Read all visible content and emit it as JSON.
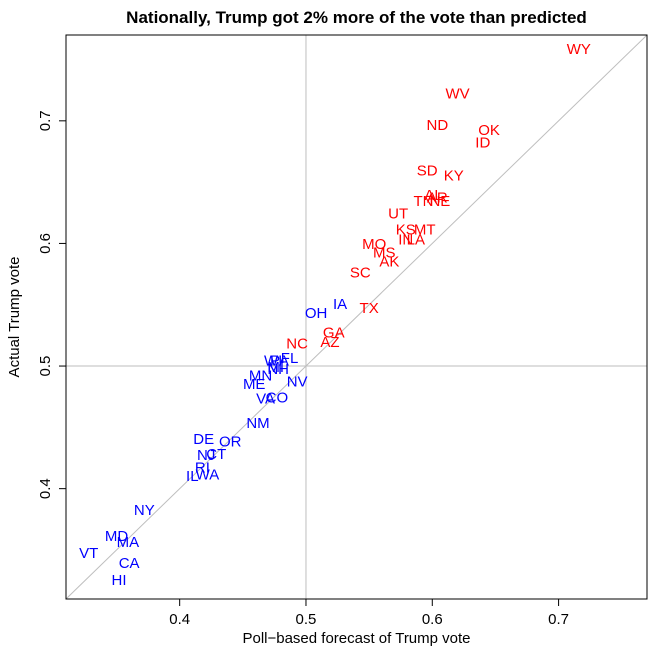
{
  "chart_data": {
    "type": "scatter",
    "title": "Nationally, Trump got 2% more of the vote than predicted",
    "xlabel": "Poll−based forecast of Trump  vote",
    "ylabel": "Actual Trump vote",
    "xlim": [
      0.31,
      0.77
    ],
    "ylim": [
      0.31,
      0.77
    ],
    "xticks": [
      {
        "value": 0.4,
        "label": "0.4"
      },
      {
        "value": 0.5,
        "label": "0.5"
      },
      {
        "value": 0.6,
        "label": "0.6"
      },
      {
        "value": 0.7,
        "label": "0.7"
      }
    ],
    "yticks": [
      {
        "value": 0.4,
        "label": "0.4"
      },
      {
        "value": 0.5,
        "label": "0.5"
      },
      {
        "value": 0.6,
        "label": "0.6"
      },
      {
        "value": 0.7,
        "label": "0.7"
      }
    ],
    "reference_lines": {
      "diagonal": "y = x",
      "vertical_x": 0.5,
      "horizontal_y": 0.5,
      "color": "#bebebe"
    },
    "colors": {
      "won": "#ff0000",
      "lost": "#0000ff"
    },
    "points": [
      {
        "label": "WY",
        "x": 0.716,
        "y": 0.758,
        "won": true
      },
      {
        "label": "WV",
        "x": 0.62,
        "y": 0.722,
        "won": true
      },
      {
        "label": "ND",
        "x": 0.604,
        "y": 0.696,
        "won": true
      },
      {
        "label": "OK",
        "x": 0.645,
        "y": 0.692,
        "won": true
      },
      {
        "label": "ID",
        "x": 0.64,
        "y": 0.682,
        "won": true
      },
      {
        "label": "SD",
        "x": 0.596,
        "y": 0.659,
        "won": true
      },
      {
        "label": "KY",
        "x": 0.617,
        "y": 0.655,
        "won": true
      },
      {
        "label": "AL",
        "x": 0.601,
        "y": 0.639,
        "won": true
      },
      {
        "label": "AR",
        "x": 0.604,
        "y": 0.637,
        "won": true
      },
      {
        "label": "TN",
        "x": 0.593,
        "y": 0.634,
        "won": true
      },
      {
        "label": "NE",
        "x": 0.606,
        "y": 0.634,
        "won": true
      },
      {
        "label": "UT",
        "x": 0.573,
        "y": 0.624,
        "won": true
      },
      {
        "label": "KS",
        "x": 0.579,
        "y": 0.611,
        "won": true
      },
      {
        "label": "MT",
        "x": 0.594,
        "y": 0.611,
        "won": true
      },
      {
        "label": "IN",
        "x": 0.579,
        "y": 0.603,
        "won": true
      },
      {
        "label": "LA",
        "x": 0.587,
        "y": 0.603,
        "won": true
      },
      {
        "label": "MO",
        "x": 0.554,
        "y": 0.599,
        "won": true
      },
      {
        "label": "MS",
        "x": 0.562,
        "y": 0.592,
        "won": true
      },
      {
        "label": "AK",
        "x": 0.566,
        "y": 0.585,
        "won": true
      },
      {
        "label": "SC",
        "x": 0.543,
        "y": 0.576,
        "won": true
      },
      {
        "label": "TX",
        "x": 0.55,
        "y": 0.547,
        "won": true
      },
      {
        "label": "IA",
        "x": 0.527,
        "y": 0.55,
        "won": false
      },
      {
        "label": "OH",
        "x": 0.508,
        "y": 0.543,
        "won": false
      },
      {
        "label": "GA",
        "x": 0.522,
        "y": 0.527,
        "won": true
      },
      {
        "label": "AZ",
        "x": 0.519,
        "y": 0.519,
        "won": true
      },
      {
        "label": "NC",
        "x": 0.493,
        "y": 0.518,
        "won": true
      },
      {
        "label": "FL",
        "x": 0.487,
        "y": 0.506,
        "won": false
      },
      {
        "label": "WI",
        "x": 0.474,
        "y": 0.504,
        "won": false
      },
      {
        "label": "PA",
        "x": 0.479,
        "y": 0.504,
        "won": false
      },
      {
        "label": "MI",
        "x": 0.476,
        "y": 0.499,
        "won": false
      },
      {
        "label": "NH",
        "x": 0.478,
        "y": 0.497,
        "won": false
      },
      {
        "label": "MN",
        "x": 0.464,
        "y": 0.492,
        "won": false
      },
      {
        "label": "ME",
        "x": 0.459,
        "y": 0.485,
        "won": false
      },
      {
        "label": "NV",
        "x": 0.493,
        "y": 0.487,
        "won": false
      },
      {
        "label": "VA",
        "x": 0.468,
        "y": 0.473,
        "won": false
      },
      {
        "label": "CO",
        "x": 0.477,
        "y": 0.474,
        "won": false
      },
      {
        "label": "NM",
        "x": 0.462,
        "y": 0.453,
        "won": false
      },
      {
        "label": "DE",
        "x": 0.419,
        "y": 0.44,
        "won": false
      },
      {
        "label": "OR",
        "x": 0.44,
        "y": 0.438,
        "won": false
      },
      {
        "label": "NJ",
        "x": 0.421,
        "y": 0.427,
        "won": false
      },
      {
        "label": "CT",
        "x": 0.429,
        "y": 0.428,
        "won": false
      },
      {
        "label": "RI",
        "x": 0.418,
        "y": 0.417,
        "won": false
      },
      {
        "label": "IL",
        "x": 0.41,
        "y": 0.41,
        "won": false
      },
      {
        "label": "WA",
        "x": 0.422,
        "y": 0.411,
        "won": false
      },
      {
        "label": "NY",
        "x": 0.372,
        "y": 0.382,
        "won": false
      },
      {
        "label": "MD",
        "x": 0.35,
        "y": 0.361,
        "won": false
      },
      {
        "label": "MA",
        "x": 0.359,
        "y": 0.356,
        "won": false
      },
      {
        "label": "VT",
        "x": 0.328,
        "y": 0.347,
        "won": false
      },
      {
        "label": "CA",
        "x": 0.36,
        "y": 0.339,
        "won": false
      },
      {
        "label": "HI",
        "x": 0.352,
        "y": 0.325,
        "won": false
      }
    ]
  }
}
